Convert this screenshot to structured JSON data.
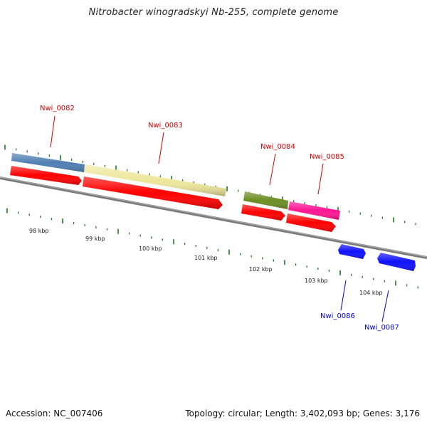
{
  "header": {
    "title": "Nitrobacter winogradskyi Nb-255, complete genome"
  },
  "footer": {
    "accession": "Accession: NC_007406",
    "summary": "Topology: circular; Length: 3,402,093 bp; Genes: 3,176"
  },
  "colors": {
    "backbone": "#808080",
    "tick": "#1e7a1e",
    "cds": "#ff0000",
    "label_red": "#d40000",
    "label_blue": "#0000d0",
    "gene_0082": "#4f7fb3",
    "gene_0083": "#eee79c",
    "gene_0084": "#6b8e23",
    "gene_0085": "#ff1493",
    "gene_0086": "#1010ff",
    "gene_0087": "#1010ff"
  },
  "scale_labels": [
    "98 kbp",
    "99 kbp",
    "100 kbp",
    "101 kbp",
    "102 kbp",
    "103 kbp",
    "104 kbp"
  ],
  "genes": [
    {
      "name": "Nwi_0082",
      "color_key": "gene_0082",
      "label_color": "label_red"
    },
    {
      "name": "Nwi_0083",
      "color_key": "gene_0083",
      "label_color": "label_red"
    },
    {
      "name": "Nwi_0084",
      "color_key": "gene_0084",
      "label_color": "label_red"
    },
    {
      "name": "Nwi_0085",
      "color_key": "gene_0085",
      "label_color": "label_red"
    },
    {
      "name": "Nwi_0086",
      "color_key": "gene_0086",
      "label_color": "label_blue"
    },
    {
      "name": "Nwi_0087",
      "color_key": "gene_0087",
      "label_color": "label_blue"
    }
  ]
}
